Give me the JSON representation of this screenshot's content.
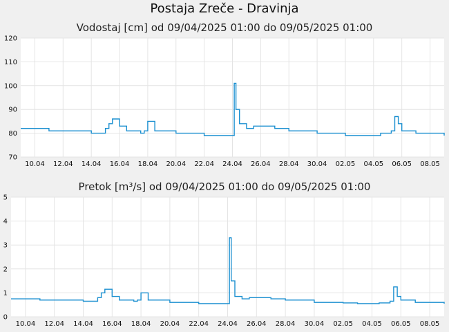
{
  "page": {
    "title": "Postaja Zreče - Dravinja"
  },
  "chart_data": [
    {
      "type": "line",
      "title": "Vodostaj [cm] od 09/04/2025 01:00 do 09/05/2025 01:00",
      "xlabel": "",
      "ylabel": "",
      "ylim": [
        70,
        120
      ],
      "yticks": [
        "70",
        "80",
        "90",
        "100",
        "110",
        "120"
      ],
      "xlim": [
        "2025-04-09",
        "2025-05-09"
      ],
      "xticks": [
        {
          "date": "2025-04-10",
          "label": "10.04"
        },
        {
          "date": "2025-04-12",
          "label": "12.04"
        },
        {
          "date": "2025-04-14",
          "label": "14.04"
        },
        {
          "date": "2025-04-16",
          "label": "16.04"
        },
        {
          "date": "2025-04-18",
          "label": "18.04"
        },
        {
          "date": "2025-04-20",
          "label": "20.04"
        },
        {
          "date": "2025-04-22",
          "label": "22.04"
        },
        {
          "date": "2025-04-24",
          "label": "24.04"
        },
        {
          "date": "2025-04-26",
          "label": "26.04"
        },
        {
          "date": "2025-04-28",
          "label": "28.04"
        },
        {
          "date": "2025-04-30",
          "label": "30.04"
        },
        {
          "date": "2025-05-02",
          "label": "02.05"
        },
        {
          "date": "2025-05-04",
          "label": "04.05"
        },
        {
          "date": "2025-05-06",
          "label": "06.05"
        },
        {
          "date": "2025-05-08",
          "label": "08.05"
        }
      ],
      "grid": true,
      "color": "#1a8fd0",
      "series": [
        {
          "x": [
            "2025-04-09",
            "2025-04-09T12:00",
            "2025-04-10",
            "2025-04-11",
            "2025-04-12",
            "2025-04-13",
            "2025-04-14",
            "2025-04-14T12:00",
            "2025-04-15",
            "2025-04-15T06:00",
            "2025-04-15T12:00",
            "2025-04-16",
            "2025-04-16T12:00",
            "2025-04-17",
            "2025-04-17T12:00",
            "2025-04-17T18:00",
            "2025-04-18",
            "2025-04-18T12:00",
            "2025-04-19",
            "2025-04-20",
            "2025-04-21",
            "2025-04-22",
            "2025-04-23",
            "2025-04-23T18:00",
            "2025-04-24",
            "2025-04-24T03:00",
            "2025-04-24T06:00",
            "2025-04-24T12:00",
            "2025-04-25",
            "2025-04-25T12:00",
            "2025-04-26",
            "2025-04-27",
            "2025-04-28",
            "2025-04-29",
            "2025-04-30",
            "2025-05-01",
            "2025-05-02",
            "2025-05-03",
            "2025-05-04",
            "2025-05-04T12:00",
            "2025-05-05",
            "2025-05-05T06:00",
            "2025-05-05T12:00",
            "2025-05-05T18:00",
            "2025-05-06",
            "2025-05-07",
            "2025-05-08",
            "2025-05-09"
          ],
          "y": [
            82,
            82,
            82,
            81,
            81,
            81,
            80,
            80,
            82,
            84,
            86,
            83,
            81,
            81,
            80,
            81,
            85,
            81,
            81,
            80,
            80,
            79,
            79,
            79,
            79,
            101,
            90,
            84,
            82,
            83,
            83,
            82,
            81,
            81,
            80,
            80,
            79,
            79,
            79,
            80,
            80,
            81,
            87,
            84,
            81,
            80,
            80,
            79
          ]
        }
      ]
    },
    {
      "type": "line",
      "title": "Pretok [m³/s] od 09/04/2025 01:00 do 09/05/2025 01:00",
      "xlabel": "",
      "ylabel": "",
      "ylim": [
        0,
        5
      ],
      "yticks": [
        "0",
        "1",
        "2",
        "3",
        "4",
        "5"
      ],
      "xlim": [
        "2025-04-09",
        "2025-05-09"
      ],
      "xticks": [
        {
          "date": "2025-04-10",
          "label": "10.04"
        },
        {
          "date": "2025-04-12",
          "label": "12.04"
        },
        {
          "date": "2025-04-14",
          "label": "14.04"
        },
        {
          "date": "2025-04-16",
          "label": "16.04"
        },
        {
          "date": "2025-04-18",
          "label": "18.04"
        },
        {
          "date": "2025-04-20",
          "label": "20.04"
        },
        {
          "date": "2025-04-22",
          "label": "22.04"
        },
        {
          "date": "2025-04-24",
          "label": "24.04"
        },
        {
          "date": "2025-04-26",
          "label": "26.04"
        },
        {
          "date": "2025-04-28",
          "label": "28.04"
        },
        {
          "date": "2025-04-30",
          "label": "30.04"
        },
        {
          "date": "2025-05-02",
          "label": "02.05"
        },
        {
          "date": "2025-05-04",
          "label": "04.05"
        },
        {
          "date": "2025-05-06",
          "label": "06.05"
        },
        {
          "date": "2025-05-08",
          "label": "08.05"
        }
      ],
      "grid": true,
      "color": "#1a8fd0",
      "series": [
        {
          "x": [
            "2025-04-09",
            "2025-04-09T12:00",
            "2025-04-10",
            "2025-04-11",
            "2025-04-12",
            "2025-04-13",
            "2025-04-14",
            "2025-04-14T12:00",
            "2025-04-15",
            "2025-04-15T06:00",
            "2025-04-15T12:00",
            "2025-04-16",
            "2025-04-16T12:00",
            "2025-04-17",
            "2025-04-17T12:00",
            "2025-04-17T18:00",
            "2025-04-18",
            "2025-04-18T12:00",
            "2025-04-19",
            "2025-04-20",
            "2025-04-21",
            "2025-04-22",
            "2025-04-23",
            "2025-04-23T18:00",
            "2025-04-24",
            "2025-04-24T03:00",
            "2025-04-24T06:00",
            "2025-04-24T12:00",
            "2025-04-25",
            "2025-04-25T12:00",
            "2025-04-26",
            "2025-04-27",
            "2025-04-28",
            "2025-04-29",
            "2025-04-30",
            "2025-05-01",
            "2025-05-02",
            "2025-05-03",
            "2025-05-04",
            "2025-05-04T12:00",
            "2025-05-05",
            "2025-05-05T06:00",
            "2025-05-05T12:00",
            "2025-05-05T18:00",
            "2025-05-06",
            "2025-05-07",
            "2025-05-08",
            "2025-05-09"
          ],
          "y": [
            0.75,
            0.75,
            0.75,
            0.7,
            0.7,
            0.7,
            0.65,
            0.65,
            0.8,
            1.0,
            1.15,
            0.85,
            0.7,
            0.7,
            0.65,
            0.7,
            1.0,
            0.7,
            0.7,
            0.6,
            0.6,
            0.55,
            0.55,
            0.55,
            0.55,
            3.3,
            1.5,
            0.85,
            0.75,
            0.8,
            0.8,
            0.75,
            0.7,
            0.7,
            0.6,
            0.6,
            0.58,
            0.55,
            0.55,
            0.58,
            0.58,
            0.65,
            1.25,
            0.85,
            0.7,
            0.6,
            0.6,
            0.55
          ]
        }
      ]
    }
  ]
}
